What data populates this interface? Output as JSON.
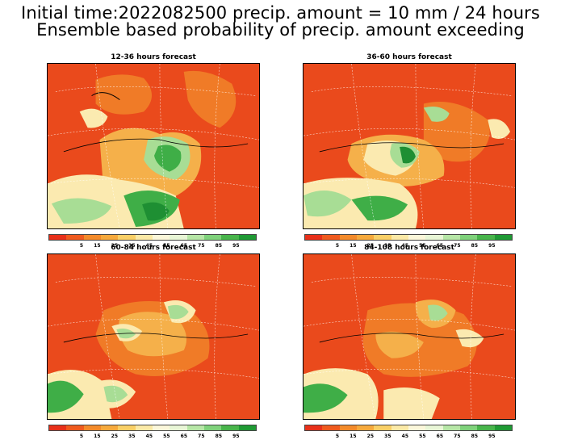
{
  "header": {
    "line1": "Initial time:2022082500 precip. amount = 10 mm / 24 hours",
    "line2": "Ensemble based probability of precip. amount exceeding"
  },
  "panels": [
    {
      "title": "12-36 hours forecast"
    },
    {
      "title": "36-60 hours forecast"
    },
    {
      "title": "60-84 hours forecast"
    },
    {
      "title": "84-108 hours forecast"
    }
  ],
  "colorbar": {
    "colors": [
      "#e8301a",
      "#ef5a1e",
      "#f38a2a",
      "#f6a93c",
      "#f9cf66",
      "#fbe9a6",
      "#fbf7da",
      "#e8f6d6",
      "#b6e6a6",
      "#7fd27b",
      "#48b54b",
      "#1f9a34"
    ],
    "ticks": [
      "5",
      "15",
      "25",
      "35",
      "45",
      "55",
      "65",
      "75",
      "85",
      "95"
    ]
  },
  "map_colors": {
    "dry": "#ea4a1c",
    "low": "#f07b27",
    "mid": "#f5b04a",
    "pale": "#fbeab0",
    "light_green": "#a8dd95",
    "green": "#3fae47",
    "dark_green": "#1e8f33"
  }
}
